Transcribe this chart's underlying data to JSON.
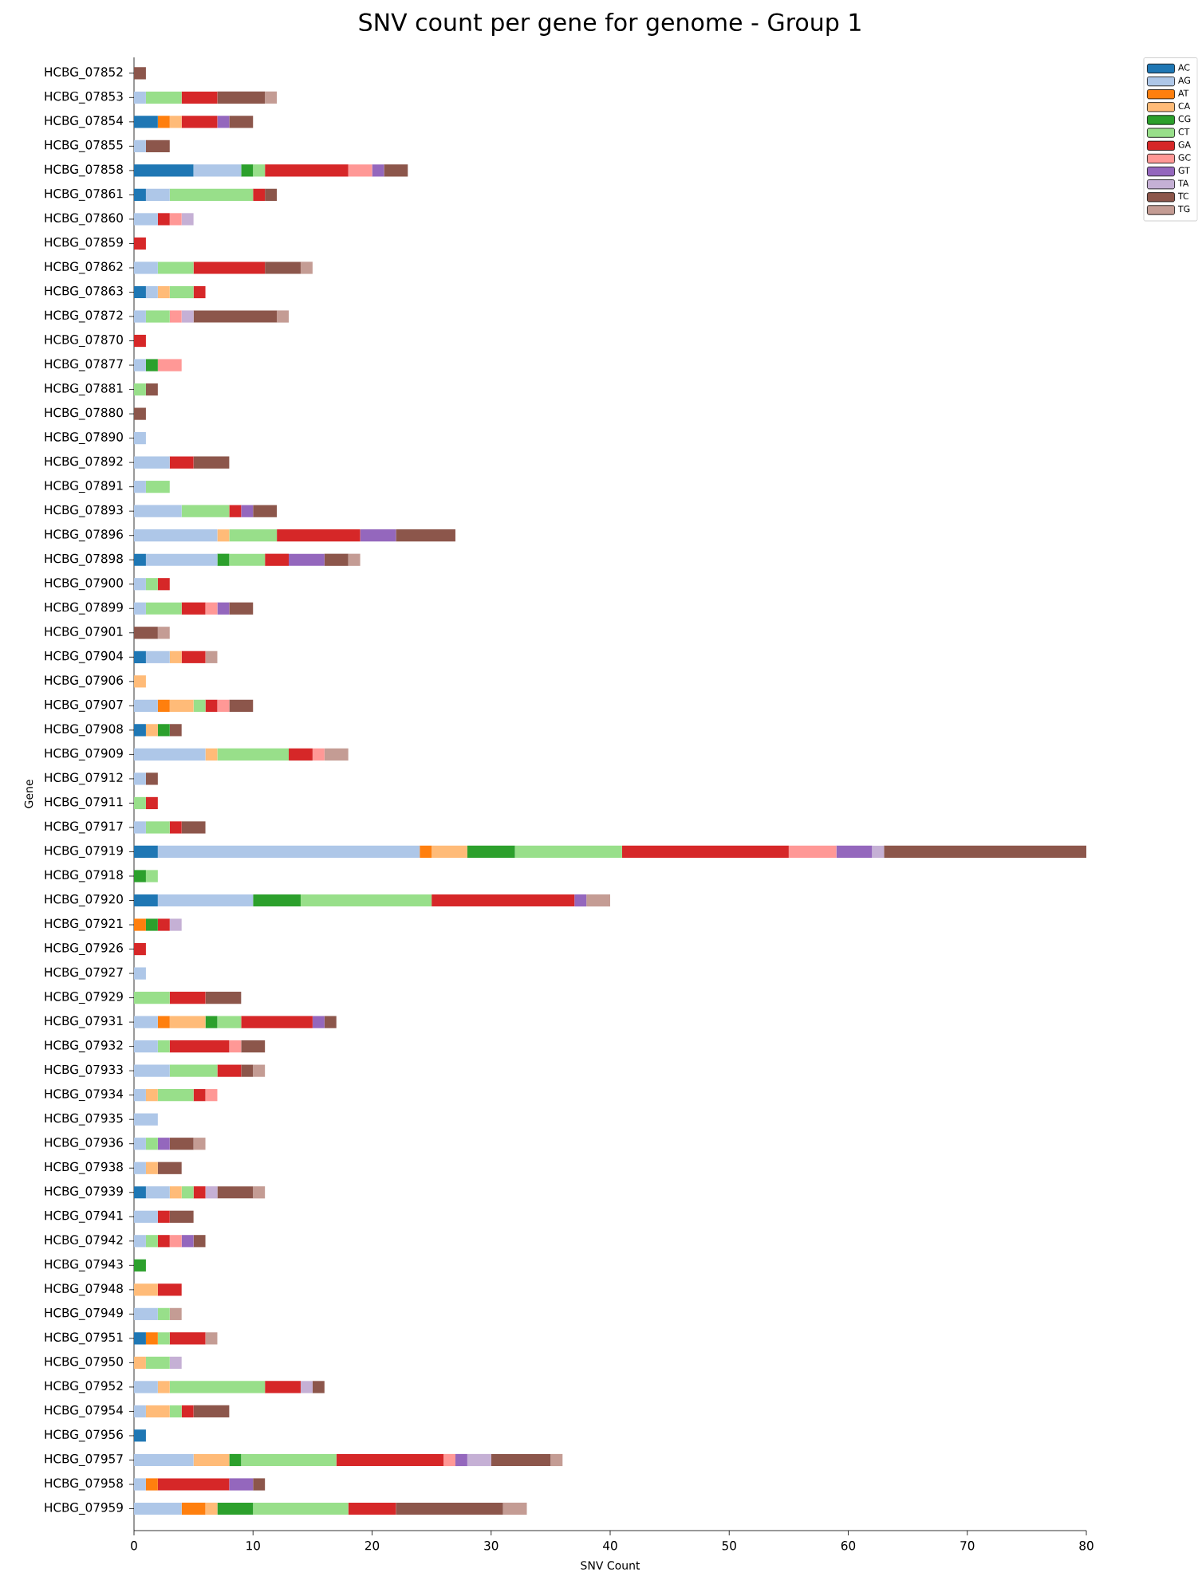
{
  "chart_data": {
    "type": "bar",
    "orientation": "horizontal",
    "stacked": true,
    "title": "SNV count per gene for genome - Group 1",
    "xlabel": "SNV Count",
    "ylabel": "Gene",
    "categories": [
      "HCBG_07852",
      "HCBG_07853",
      "HCBG_07854",
      "HCBG_07855",
      "HCBG_07858",
      "HCBG_07861",
      "HCBG_07860",
      "HCBG_07859",
      "HCBG_07862",
      "HCBG_07863",
      "HCBG_07872",
      "HCBG_07870",
      "HCBG_07877",
      "HCBG_07881",
      "HCBG_07880",
      "HCBG_07890",
      "HCBG_07892",
      "HCBG_07891",
      "HCBG_07893",
      "HCBG_07896",
      "HCBG_07898",
      "HCBG_07900",
      "HCBG_07899",
      "HCBG_07901",
      "HCBG_07904",
      "HCBG_07906",
      "HCBG_07907",
      "HCBG_07908",
      "HCBG_07909",
      "HCBG_07912",
      "HCBG_07911",
      "HCBG_07917",
      "HCBG_07919",
      "HCBG_07918",
      "HCBG_07920",
      "HCBG_07921",
      "HCBG_07926",
      "HCBG_07927",
      "HCBG_07929",
      "HCBG_07931",
      "HCBG_07932",
      "HCBG_07933",
      "HCBG_07934",
      "HCBG_07935",
      "HCBG_07936",
      "HCBG_07938",
      "HCBG_07939",
      "HCBG_07941",
      "HCBG_07942",
      "HCBG_07943",
      "HCBG_07948",
      "HCBG_07949",
      "HCBG_07951",
      "HCBG_07950",
      "HCBG_07952",
      "HCBG_07954",
      "HCBG_07956",
      "HCBG_07957",
      "HCBG_07958",
      "HCBG_07959"
    ],
    "series": [
      {
        "name": "AC",
        "color": "#1f77b4",
        "values": [
          0,
          0,
          2,
          0,
          5,
          1,
          0,
          0,
          0,
          1,
          0,
          0,
          0,
          0,
          0,
          0,
          0,
          0,
          0,
          0,
          1,
          0,
          0,
          0,
          1,
          0,
          0,
          1,
          0,
          0,
          0,
          0,
          2,
          0,
          2,
          0,
          0,
          0,
          0,
          0,
          0,
          0,
          0,
          0,
          0,
          0,
          1,
          0,
          0,
          0,
          0,
          0,
          1,
          0,
          0,
          0,
          1,
          0,
          0,
          0
        ]
      },
      {
        "name": "AG",
        "color": "#aec7e8",
        "values": [
          0,
          1,
          0,
          1,
          4,
          2,
          2,
          0,
          2,
          1,
          1,
          0,
          1,
          0,
          0,
          1,
          3,
          1,
          4,
          7,
          6,
          1,
          1,
          0,
          2,
          0,
          2,
          0,
          6,
          1,
          0,
          1,
          22,
          0,
          8,
          0,
          0,
          1,
          0,
          2,
          2,
          3,
          1,
          2,
          1,
          1,
          2,
          2,
          1,
          0,
          0,
          2,
          0,
          0,
          2,
          1,
          0,
          5,
          1,
          4
        ]
      },
      {
        "name": "AT",
        "color": "#ff7f0e",
        "values": [
          0,
          0,
          1,
          0,
          0,
          0,
          0,
          0,
          0,
          0,
          0,
          0,
          0,
          0,
          0,
          0,
          0,
          0,
          0,
          0,
          0,
          0,
          0,
          0,
          0,
          0,
          1,
          0,
          0,
          0,
          0,
          0,
          1,
          0,
          0,
          1,
          0,
          0,
          0,
          1,
          0,
          0,
          0,
          0,
          0,
          0,
          0,
          0,
          0,
          0,
          0,
          0,
          1,
          0,
          0,
          0,
          0,
          0,
          1,
          2
        ]
      },
      {
        "name": "CA",
        "color": "#ffbb78",
        "values": [
          0,
          0,
          1,
          0,
          0,
          0,
          0,
          0,
          0,
          1,
          0,
          0,
          0,
          0,
          0,
          0,
          0,
          0,
          0,
          1,
          0,
          0,
          0,
          0,
          1,
          1,
          2,
          1,
          1,
          0,
          0,
          0,
          3,
          0,
          0,
          0,
          0,
          0,
          0,
          3,
          0,
          0,
          1,
          0,
          0,
          1,
          1,
          0,
          0,
          0,
          2,
          0,
          0,
          1,
          1,
          2,
          0,
          3,
          0,
          1
        ]
      },
      {
        "name": "CG",
        "color": "#2ca02c",
        "values": [
          0,
          0,
          0,
          0,
          1,
          0,
          0,
          0,
          0,
          0,
          0,
          0,
          1,
          0,
          0,
          0,
          0,
          0,
          0,
          0,
          1,
          0,
          0,
          0,
          0,
          0,
          0,
          1,
          0,
          0,
          0,
          0,
          4,
          1,
          4,
          1,
          0,
          0,
          0,
          1,
          0,
          0,
          0,
          0,
          0,
          0,
          0,
          0,
          0,
          1,
          0,
          0,
          0,
          0,
          0,
          0,
          0,
          1,
          0,
          3
        ]
      },
      {
        "name": "CT",
        "color": "#98df8a",
        "values": [
          0,
          3,
          0,
          0,
          1,
          7,
          0,
          0,
          3,
          2,
          2,
          0,
          0,
          1,
          0,
          0,
          0,
          2,
          4,
          4,
          3,
          1,
          3,
          0,
          0,
          0,
          1,
          0,
          6,
          0,
          1,
          2,
          9,
          1,
          11,
          0,
          0,
          0,
          3,
          2,
          1,
          4,
          3,
          0,
          1,
          0,
          1,
          0,
          1,
          0,
          0,
          1,
          1,
          2,
          8,
          1,
          0,
          8,
          0,
          8
        ]
      },
      {
        "name": "GA",
        "color": "#d62728",
        "values": [
          0,
          3,
          3,
          0,
          7,
          1,
          1,
          1,
          6,
          1,
          0,
          1,
          0,
          0,
          0,
          0,
          2,
          0,
          1,
          7,
          2,
          1,
          2,
          0,
          2,
          0,
          1,
          0,
          2,
          0,
          1,
          1,
          14,
          0,
          12,
          1,
          1,
          0,
          3,
          6,
          5,
          2,
          1,
          0,
          0,
          0,
          1,
          1,
          1,
          0,
          2,
          0,
          3,
          0,
          3,
          1,
          0,
          9,
          6,
          4
        ]
      },
      {
        "name": "GC",
        "color": "#ff9896",
        "values": [
          0,
          0,
          0,
          0,
          2,
          0,
          1,
          0,
          0,
          0,
          1,
          0,
          2,
          0,
          0,
          0,
          0,
          0,
          0,
          0,
          0,
          0,
          1,
          0,
          0,
          0,
          1,
          0,
          1,
          0,
          0,
          0,
          4,
          0,
          0,
          0,
          0,
          0,
          0,
          0,
          1,
          0,
          1,
          0,
          0,
          0,
          0,
          0,
          1,
          0,
          0,
          0,
          0,
          0,
          0,
          0,
          0,
          1,
          0,
          0
        ]
      },
      {
        "name": "GT",
        "color": "#9467bd",
        "values": [
          0,
          0,
          1,
          0,
          1,
          0,
          0,
          0,
          0,
          0,
          0,
          0,
          0,
          0,
          0,
          0,
          0,
          0,
          1,
          3,
          3,
          0,
          1,
          0,
          0,
          0,
          0,
          0,
          0,
          0,
          0,
          0,
          3,
          0,
          1,
          0,
          0,
          0,
          0,
          1,
          0,
          0,
          0,
          0,
          1,
          0,
          0,
          0,
          1,
          0,
          0,
          0,
          0,
          0,
          0,
          0,
          0,
          1,
          2,
          0
        ]
      },
      {
        "name": "TA",
        "color": "#c5b0d5",
        "values": [
          0,
          0,
          0,
          0,
          0,
          0,
          1,
          0,
          0,
          0,
          1,
          0,
          0,
          0,
          0,
          0,
          0,
          0,
          0,
          0,
          0,
          0,
          0,
          0,
          0,
          0,
          0,
          0,
          0,
          0,
          0,
          0,
          1,
          0,
          0,
          1,
          0,
          0,
          0,
          0,
          0,
          0,
          0,
          0,
          0,
          0,
          1,
          0,
          0,
          0,
          0,
          0,
          0,
          1,
          1,
          0,
          0,
          2,
          0,
          0
        ]
      },
      {
        "name": "TC",
        "color": "#8c564b",
        "values": [
          1,
          4,
          2,
          2,
          2,
          1,
          0,
          0,
          3,
          0,
          7,
          0,
          0,
          1,
          1,
          0,
          3,
          0,
          2,
          5,
          2,
          0,
          2,
          2,
          0,
          0,
          2,
          1,
          0,
          1,
          0,
          2,
          17,
          0,
          0,
          0,
          0,
          0,
          3,
          1,
          2,
          1,
          0,
          0,
          2,
          2,
          3,
          2,
          1,
          0,
          0,
          0,
          0,
          0,
          1,
          3,
          0,
          5,
          1,
          9
        ]
      },
      {
        "name": "TG",
        "color": "#c49c94",
        "values": [
          0,
          1,
          0,
          0,
          0,
          0,
          0,
          0,
          1,
          0,
          1,
          0,
          0,
          0,
          0,
          0,
          0,
          0,
          0,
          0,
          1,
          0,
          0,
          1,
          1,
          0,
          0,
          0,
          2,
          0,
          0,
          0,
          0,
          0,
          2,
          0,
          0,
          0,
          0,
          0,
          0,
          1,
          0,
          0,
          1,
          0,
          1,
          0,
          0,
          0,
          0,
          1,
          1,
          0,
          0,
          0,
          0,
          1,
          0,
          2
        ]
      }
    ],
    "xlim": [
      0,
      80
    ],
    "xticks": [
      0,
      10,
      20,
      30,
      40,
      50,
      60,
      70,
      80
    ],
    "legend": "top right"
  }
}
